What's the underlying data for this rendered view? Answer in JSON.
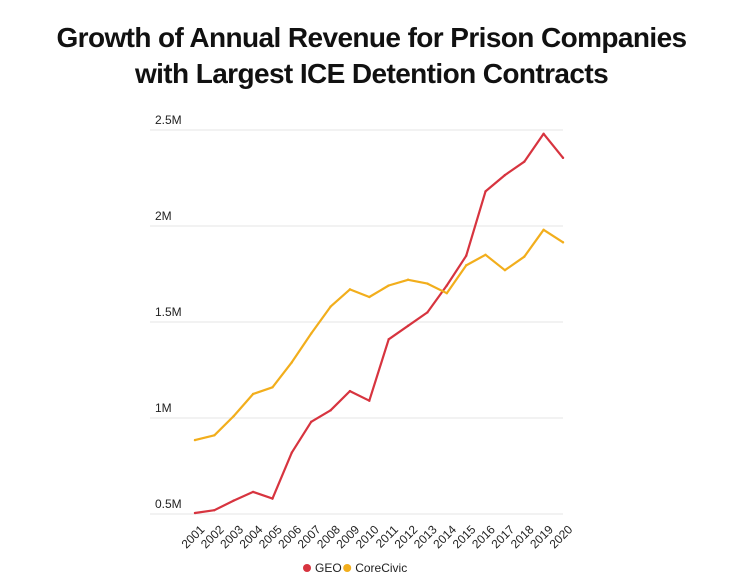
{
  "chart_data": {
    "type": "line",
    "title_lines": [
      "Growth of Annual Revenue for Prison Companies",
      "with Largest ICE Detention Contracts"
    ],
    "x": [
      "2001",
      "2002",
      "2003",
      "2004",
      "2005",
      "2006",
      "2007",
      "2008",
      "2009",
      "2010",
      "2011",
      "2012",
      "2013",
      "2014",
      "2015",
      "2016",
      "2017",
      "2018",
      "2019",
      "2020"
    ],
    "y_ticks": [
      {
        "value": 500000,
        "label": "0.5M"
      },
      {
        "value": 1000000,
        "label": "1M"
      },
      {
        "value": 1500000,
        "label": "1.5M"
      },
      {
        "value": 2000000,
        "label": "2M"
      },
      {
        "value": 2500000,
        "label": "2.5M"
      }
    ],
    "ylim": [
      500000,
      2500000
    ],
    "grid": true,
    "legend_position": "bottom-center",
    "xlabel": "",
    "ylabel": "",
    "series": [
      {
        "name": "GEO",
        "color": "#d7343f",
        "values": [
          505000,
          520000,
          570000,
          615000,
          580000,
          820000,
          980000,
          1040000,
          1140000,
          1090000,
          1410000,
          1480000,
          1550000,
          1690000,
          1845000,
          2180000,
          2265000,
          2335000,
          2480000,
          2355000
        ]
      },
      {
        "name": "CoreCivic",
        "color": "#f2ae1c",
        "values": [
          885000,
          910000,
          1010000,
          1125000,
          1160000,
          1290000,
          1440000,
          1580000,
          1670000,
          1630000,
          1690000,
          1720000,
          1700000,
          1650000,
          1795000,
          1850000,
          1770000,
          1840000,
          1980000,
          1915000
        ]
      }
    ]
  }
}
